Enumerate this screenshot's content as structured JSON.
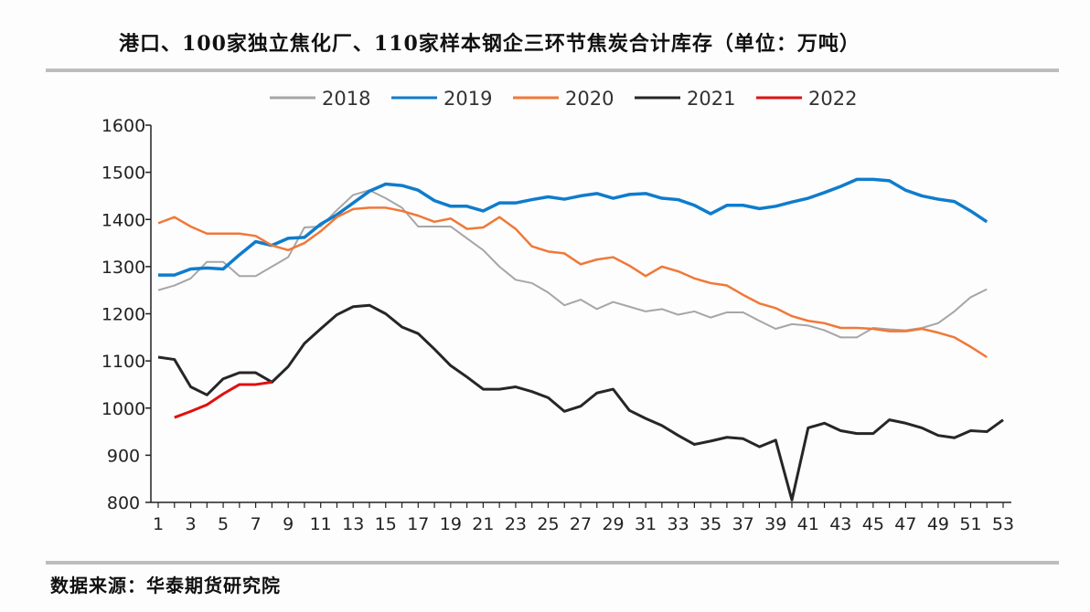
{
  "title": "港口、100家独立焦化厂、110家样本钢企三环节焦炭合计库存（单位：万吨）",
  "source": "数据来源：华泰期货研究院",
  "chart_data": {
    "type": "line",
    "title": "港口、100家独立焦化厂、110家样本钢企三环节焦炭合计库存（单位：万吨）",
    "xlabel": "",
    "ylabel": "",
    "ylim": [
      800,
      1600
    ],
    "yticks": [
      800,
      900,
      1000,
      1100,
      1200,
      1300,
      1400,
      1500,
      1600
    ],
    "xlim": [
      1,
      53
    ],
    "xticks": [
      1,
      3,
      5,
      7,
      9,
      11,
      13,
      15,
      17,
      19,
      21,
      23,
      25,
      27,
      29,
      31,
      33,
      35,
      37,
      39,
      41,
      43,
      45,
      47,
      49,
      51,
      53
    ],
    "grid": false,
    "legend": "top",
    "series": [
      {
        "name": "2018",
        "color": "#a6a6a6",
        "start": 1,
        "values": [
          1250,
          1260,
          1275,
          1310,
          1310,
          1280,
          1280,
          1300,
          1320,
          1383,
          1385,
          1420,
          1452,
          1462,
          1445,
          1425,
          1385,
          1385,
          1385,
          1360,
          1335,
          1300,
          1272,
          1265,
          1245,
          1218,
          1230,
          1210,
          1225,
          1215,
          1205,
          1210,
          1198,
          1205,
          1192,
          1203,
          1203,
          1185,
          1168,
          1178,
          1175,
          1165,
          1150,
          1150,
          1170,
          1167,
          1165,
          1170,
          1180,
          1205,
          1235,
          1252
        ]
      },
      {
        "name": "2019",
        "color": "#0f7ccc",
        "start": 1,
        "values": [
          1282,
          1282,
          1295,
          1297,
          1295,
          1325,
          1353,
          1345,
          1360,
          1362,
          1390,
          1410,
          1435,
          1460,
          1475,
          1472,
          1462,
          1440,
          1428,
          1428,
          1418,
          1435,
          1435,
          1442,
          1448,
          1443,
          1450,
          1455,
          1445,
          1453,
          1455,
          1445,
          1442,
          1430,
          1412,
          1430,
          1430,
          1423,
          1428,
          1437,
          1445,
          1457,
          1470,
          1485,
          1485,
          1482,
          1462,
          1450,
          1443,
          1438,
          1418,
          1395
        ]
      },
      {
        "name": "2020",
        "color": "#f07838",
        "start": 1,
        "values": [
          1392,
          1405,
          1385,
          1370,
          1370,
          1370,
          1365,
          1345,
          1335,
          1350,
          1375,
          1405,
          1422,
          1425,
          1425,
          1418,
          1408,
          1395,
          1402,
          1380,
          1383,
          1405,
          1380,
          1343,
          1332,
          1328,
          1305,
          1315,
          1320,
          1302,
          1280,
          1300,
          1290,
          1275,
          1265,
          1260,
          1240,
          1222,
          1212,
          1195,
          1185,
          1180,
          1170,
          1170,
          1168,
          1163,
          1163,
          1168,
          1160,
          1150,
          1130,
          1108
        ]
      },
      {
        "name": "2021",
        "color": "#262626",
        "start": 1,
        "values": [
          1108,
          1103,
          1045,
          1028,
          1062,
          1075,
          1075,
          1055,
          1088,
          1137,
          1168,
          1198,
          1215,
          1218,
          1200,
          1172,
          1158,
          1125,
          1090,
          1066,
          1040,
          1040,
          1045,
          1035,
          1022,
          993,
          1004,
          1032,
          1040,
          995,
          978,
          963,
          942,
          923,
          930,
          938,
          935,
          918,
          932,
          805,
          958,
          968,
          952,
          946,
          946,
          975,
          968,
          958,
          942,
          937,
          952,
          950,
          975
        ]
      },
      {
        "name": "2022",
        "color": "#e01010",
        "start": 2,
        "values": [
          980,
          993,
          1007,
          1030,
          1050,
          1050,
          1055
        ]
      }
    ]
  }
}
